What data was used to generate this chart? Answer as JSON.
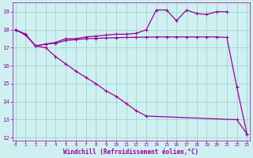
{
  "line1_x": [
    0,
    1,
    2,
    3,
    4,
    5,
    6,
    7,
    8,
    9,
    10,
    11,
    12,
    13,
    14,
    15,
    16,
    17,
    18,
    19,
    20,
    21
  ],
  "line1_y": [
    18.0,
    17.75,
    17.1,
    17.2,
    17.3,
    17.5,
    17.5,
    17.6,
    17.65,
    17.7,
    17.75,
    17.75,
    17.8,
    18.0,
    19.1,
    19.1,
    18.5,
    19.1,
    18.9,
    18.85,
    19.0,
    19.0
  ],
  "line2_x": [
    0,
    1,
    2,
    3,
    4,
    5,
    6,
    7,
    8,
    9,
    10,
    11,
    12,
    13,
    14,
    15,
    16,
    17,
    18,
    19,
    20,
    21,
    22,
    23
  ],
  "line2_y": [
    18.0,
    17.75,
    17.1,
    17.2,
    17.25,
    17.4,
    17.45,
    17.5,
    17.52,
    17.54,
    17.56,
    17.57,
    17.58,
    17.59,
    17.6,
    17.6,
    17.6,
    17.6,
    17.6,
    17.6,
    17.6,
    17.57,
    14.8,
    12.2
  ],
  "line3_x": [
    0,
    1,
    2,
    3,
    4,
    5,
    6,
    7,
    8,
    9,
    10,
    11,
    12,
    13,
    22,
    23
  ],
  "line3_y": [
    18.0,
    17.7,
    17.1,
    17.0,
    16.5,
    16.1,
    15.7,
    15.35,
    15.0,
    14.6,
    14.3,
    13.9,
    13.5,
    13.2,
    13.0,
    12.2
  ],
  "line_color": "#990099",
  "bg_color": "#cff0f0",
  "grid_color": "#99cccc",
  "xlim": [
    0,
    23
  ],
  "ylim": [
    12,
    19.5
  ],
  "yticks": [
    12,
    13,
    14,
    15,
    16,
    17,
    18,
    19
  ],
  "xticks": [
    0,
    1,
    2,
    3,
    4,
    5,
    6,
    7,
    8,
    9,
    10,
    11,
    12,
    13,
    14,
    15,
    16,
    17,
    18,
    19,
    20,
    21,
    22,
    23
  ],
  "xlabel": "Windchill (Refroidissement éolien,°C)",
  "xlabel_color": "#990099",
  "tick_color": "#990099"
}
